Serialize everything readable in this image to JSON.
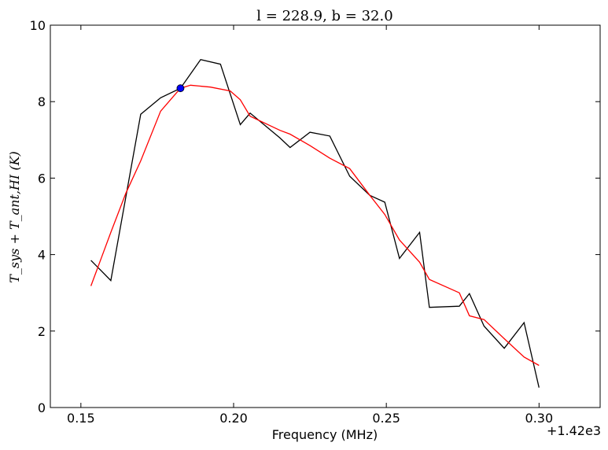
{
  "chart_data": {
    "type": "line",
    "title": "l = 228.9, b = 32.0",
    "xlabel": "Frequency (MHz)",
    "ylabel": "T_sys + T_ant,HI (K)",
    "x_offset_label": "+1.42e3",
    "xlim": [
      0.14,
      0.32
    ],
    "ylim": [
      0,
      10
    ],
    "xticks": [
      0.15,
      0.2,
      0.25,
      0.3
    ],
    "xtick_labels": [
      "0.15",
      "0.20",
      "0.25",
      "0.30"
    ],
    "yticks": [
      0,
      2,
      4,
      6,
      8,
      10
    ],
    "ytick_labels": [
      "0",
      "2",
      "4",
      "6",
      "8",
      "10"
    ],
    "grid": false,
    "series": [
      {
        "color": "#000000",
        "x": [
          0.1533,
          0.1598,
          0.1696,
          0.1761,
          0.1826,
          0.1892,
          0.1957,
          0.2022,
          0.2054,
          0.2152,
          0.2185,
          0.225,
          0.2315,
          0.238,
          0.2446,
          0.2495,
          0.2543,
          0.2609,
          0.2641,
          0.2739,
          0.2772,
          0.282,
          0.2886,
          0.2951,
          0.3
        ],
        "y": [
          3.85,
          3.32,
          7.67,
          8.1,
          8.35,
          9.1,
          8.98,
          7.4,
          7.7,
          7.05,
          6.8,
          7.2,
          7.1,
          6.05,
          5.55,
          5.37,
          3.9,
          4.58,
          2.62,
          2.65,
          2.98,
          2.13,
          1.55,
          2.22,
          0.52
        ]
      },
      {
        "color": "#ff0000",
        "x": [
          0.1533,
          0.1598,
          0.1647,
          0.1696,
          0.1761,
          0.1826,
          0.1859,
          0.1924,
          0.1989,
          0.2022,
          0.2054,
          0.2152,
          0.2185,
          0.225,
          0.2315,
          0.238,
          0.2446,
          0.2495,
          0.2543,
          0.2609,
          0.2641,
          0.2739,
          0.2772,
          0.282,
          0.2886,
          0.2951,
          0.3
        ],
        "y": [
          3.18,
          4.58,
          5.6,
          6.45,
          7.75,
          8.35,
          8.43,
          8.38,
          8.28,
          8.05,
          7.62,
          7.25,
          7.15,
          6.85,
          6.52,
          6.25,
          5.55,
          5.05,
          4.38,
          3.8,
          3.35,
          3.0,
          2.4,
          2.3,
          1.8,
          1.32,
          1.1
        ]
      }
    ],
    "marker": {
      "x": 0.1826,
      "y": 8.35,
      "color": "#0000ff"
    }
  }
}
